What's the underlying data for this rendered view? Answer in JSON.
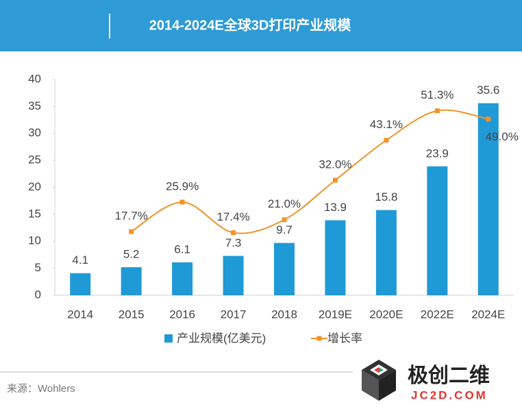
{
  "chart_data": {
    "type": "bar-line",
    "title": "2014-2024E全球3D打印产业规模",
    "categories": [
      "2014",
      "2015",
      "2016",
      "2017",
      "2018",
      "2019E",
      "2020E",
      "2022E",
      "2024E"
    ],
    "series": [
      {
        "name": "产业规模(亿美元)",
        "type": "bar",
        "color": "#1f9ad6",
        "values": [
          4.1,
          5.2,
          6.1,
          7.3,
          9.7,
          13.9,
          15.8,
          23.9,
          35.6
        ]
      },
      {
        "name": "增长率",
        "type": "line",
        "axis": "y2",
        "color": "#f0932b",
        "values": [
          null,
          17.7,
          25.9,
          17.4,
          21.0,
          32.0,
          43.1,
          51.3,
          49.0
        ],
        "value_labels": [
          null,
          "17.7%",
          "25.9%",
          "17.4%",
          "21.0%",
          "32.0%",
          "43.1%",
          "51.3%",
          "49.0%"
        ]
      }
    ],
    "ylim": [
      0,
      40
    ],
    "yticks": [
      0,
      5,
      10,
      15,
      20,
      25,
      30,
      35,
      40
    ],
    "y2lim": [
      0,
      60
    ],
    "legend": "bottom",
    "source": "来源：Wohlers",
    "logo": {
      "name": "极创二维",
      "url": "JC2D.COM"
    }
  }
}
